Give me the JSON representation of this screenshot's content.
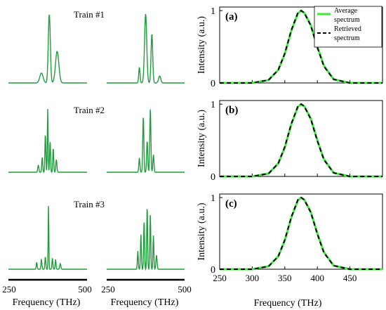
{
  "colors": {
    "train_line": "#1e9e3a",
    "average": "#3ee83e",
    "retrieved": "#000000",
    "axis": "#000000"
  },
  "left_panels": {
    "trains": [
      {
        "label": "Train #1"
      },
      {
        "label": "Train #2"
      },
      {
        "label": "Train #3"
      }
    ],
    "axis": {
      "xlabel": "Frequency (THz)",
      "ticks_left": [
        "250",
        "500"
      ],
      "ticks_right": [
        "250",
        "500"
      ]
    }
  },
  "chart_data": [
    {
      "type": "line",
      "panel": "(a)",
      "xlabel": "",
      "ylabel": "Intensity (a.u.)",
      "xlim": [
        250,
        500
      ],
      "ylim": [
        0,
        1.05
      ],
      "yticks": [
        "0",
        "1"
      ],
      "xticks": [],
      "legend": {
        "placement": "top-right",
        "entries": [
          "Average spectrum",
          "Retrieved spectrum"
        ]
      },
      "series": [
        {
          "name": "Average spectrum",
          "x": [
            250,
            300,
            325,
            340,
            350,
            360,
            370,
            375,
            380,
            390,
            400,
            410,
            425,
            450,
            500
          ],
          "y": [
            0,
            0.0,
            0.04,
            0.18,
            0.4,
            0.72,
            0.96,
            1.0,
            0.97,
            0.8,
            0.5,
            0.24,
            0.05,
            0.0,
            0
          ]
        },
        {
          "name": "Retrieved spectrum",
          "x": [
            250,
            300,
            325,
            340,
            350,
            360,
            370,
            375,
            380,
            390,
            400,
            410,
            425,
            450,
            500
          ],
          "y": [
            0,
            0.0,
            0.04,
            0.18,
            0.41,
            0.73,
            0.97,
            1.0,
            0.97,
            0.79,
            0.49,
            0.23,
            0.05,
            0.0,
            0
          ]
        }
      ]
    },
    {
      "type": "line",
      "panel": "(b)",
      "xlabel": "",
      "ylabel": "Intensity (a.u.)",
      "xlim": [
        250,
        500
      ],
      "ylim": [
        0,
        1.05
      ],
      "yticks": [
        "0",
        "1"
      ],
      "xticks": [],
      "series": [
        {
          "name": "Average spectrum",
          "x": [
            250,
            300,
            325,
            340,
            350,
            360,
            370,
            375,
            380,
            390,
            400,
            410,
            425,
            450,
            500
          ],
          "y": [
            0,
            0.0,
            0.04,
            0.18,
            0.4,
            0.72,
            0.96,
            1.0,
            0.97,
            0.8,
            0.5,
            0.24,
            0.05,
            0.0,
            0
          ]
        },
        {
          "name": "Retrieved spectrum",
          "x": [
            250,
            300,
            325,
            340,
            350,
            360,
            370,
            375,
            380,
            390,
            400,
            410,
            425,
            450,
            500
          ],
          "y": [
            0,
            0.0,
            0.04,
            0.18,
            0.41,
            0.73,
            0.97,
            1.0,
            0.97,
            0.79,
            0.49,
            0.23,
            0.05,
            0.0,
            0
          ]
        }
      ]
    },
    {
      "type": "line",
      "panel": "(c)",
      "xlabel": "Frequency (THz)",
      "ylabel": "Intensity (a.u.)",
      "xlim": [
        250,
        500
      ],
      "ylim": [
        0,
        1.05
      ],
      "yticks": [
        "0",
        "1"
      ],
      "xticks": [
        "250",
        "300",
        "350",
        "400",
        "450"
      ],
      "series": [
        {
          "name": "Average spectrum",
          "x": [
            250,
            300,
            325,
            340,
            350,
            360,
            370,
            375,
            380,
            390,
            400,
            410,
            425,
            450,
            500
          ],
          "y": [
            0,
            0.0,
            0.04,
            0.18,
            0.4,
            0.72,
            0.96,
            1.0,
            0.97,
            0.8,
            0.5,
            0.24,
            0.05,
            0.0,
            0
          ]
        },
        {
          "name": "Retrieved spectrum",
          "x": [
            250,
            300,
            325,
            340,
            350,
            360,
            370,
            375,
            380,
            390,
            400,
            410,
            425,
            450,
            500
          ],
          "y": [
            0,
            0.0,
            0.04,
            0.18,
            0.41,
            0.73,
            0.97,
            1.0,
            0.97,
            0.79,
            0.49,
            0.23,
            0.05,
            0.0,
            0
          ]
        }
      ]
    }
  ]
}
